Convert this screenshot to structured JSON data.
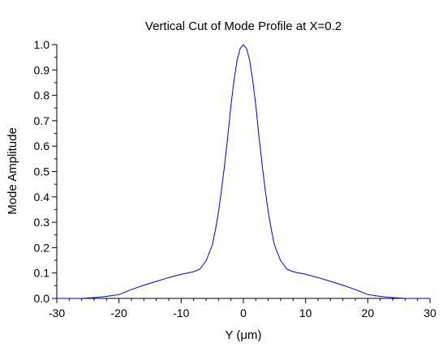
{
  "chart_data": {
    "type": "line",
    "title": "Vertical Cut of Mode Profile at X=0.2",
    "xlabel": "Y (μm)",
    "ylabel": "Mode Amplitude",
    "xlim": [
      -30,
      30
    ],
    "ylim": [
      0,
      1
    ],
    "xticks": [
      -30,
      -20,
      -10,
      0,
      10,
      20,
      30
    ],
    "xtick_labels": [
      "-30",
      "-20",
      "-10",
      "0",
      "10",
      "20",
      "30"
    ],
    "yticks": [
      0.0,
      0.1,
      0.2,
      0.3,
      0.4,
      0.5,
      0.6,
      0.7,
      0.8,
      0.9,
      1.0
    ],
    "ytick_labels": [
      "0.0",
      "0.1",
      "0.2",
      "0.3",
      "0.4",
      "0.5",
      "0.6",
      "0.7",
      "0.8",
      "0.9",
      "1.0"
    ],
    "minor_ticks": true,
    "grid": false,
    "colors": {
      "line": "#0000cc",
      "axes": "#000000"
    },
    "series": [
      {
        "x": [
          -30,
          -26,
          -24,
          -22,
          -20,
          -19,
          -18,
          -16,
          -14,
          -12,
          -10,
          -9,
          -8,
          -7,
          -6,
          -5,
          -4.5,
          -4,
          -3.5,
          -3,
          -2.5,
          -2,
          -1.5,
          -1,
          -0.5,
          0,
          0.5,
          1,
          1.5,
          2,
          2.5,
          3,
          3.5,
          4,
          4.5,
          5,
          6,
          7,
          8,
          9,
          10,
          12,
          14,
          16,
          18,
          19,
          20,
          22,
          24,
          26,
          30
        ],
        "y": [
          0.0,
          0.0,
          0.003,
          0.008,
          0.015,
          0.025,
          0.035,
          0.052,
          0.067,
          0.082,
          0.095,
          0.1,
          0.105,
          0.115,
          0.148,
          0.21,
          0.27,
          0.34,
          0.43,
          0.53,
          0.64,
          0.76,
          0.86,
          0.94,
          0.985,
          1.0,
          0.985,
          0.94,
          0.86,
          0.76,
          0.64,
          0.53,
          0.43,
          0.34,
          0.27,
          0.21,
          0.148,
          0.115,
          0.105,
          0.1,
          0.095,
          0.082,
          0.067,
          0.052,
          0.035,
          0.025,
          0.015,
          0.008,
          0.003,
          0.0,
          0.0
        ]
      }
    ]
  }
}
